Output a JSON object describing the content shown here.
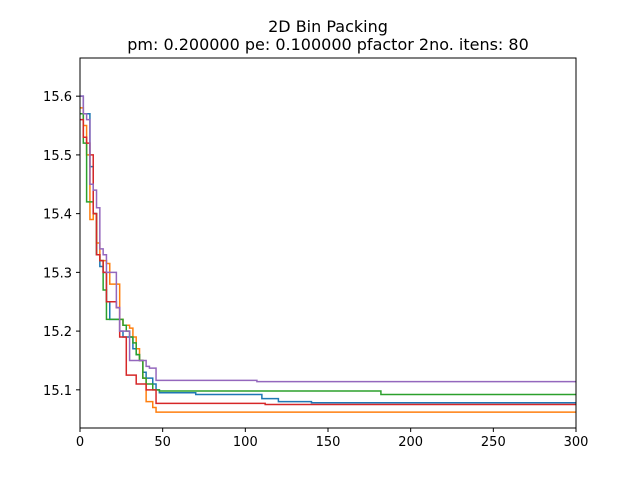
{
  "chart_data": {
    "type": "line",
    "title": "2D Bin Packing",
    "subtitle": "pm: 0.200000 pe: 0.100000 pfactor 2no. itens: 80",
    "xlabel": "",
    "ylabel": "",
    "xlim": [
      0,
      300
    ],
    "ylim": [
      15.035,
      15.665
    ],
    "xticks": [
      0,
      50,
      100,
      150,
      200,
      250,
      300
    ],
    "yticks": [
      15.1,
      15.2,
      15.3,
      15.4,
      15.5,
      15.6
    ],
    "grid": false,
    "legend": "none",
    "series": [
      {
        "color": "#1f77b4",
        "x": [
          0,
          2,
          4,
          6,
          8,
          10,
          12,
          14,
          16,
          18,
          20,
          22,
          24,
          26,
          28,
          30,
          32,
          34,
          36,
          38,
          40,
          42,
          44,
          46,
          48,
          50,
          70,
          110,
          120,
          140,
          300
        ],
        "y": [
          15.6,
          15.57,
          15.57,
          15.48,
          15.4,
          15.33,
          15.31,
          15.3,
          15.25,
          15.22,
          15.22,
          15.22,
          15.2,
          15.19,
          15.19,
          15.19,
          15.17,
          15.16,
          15.15,
          15.13,
          15.12,
          15.12,
          15.11,
          15.1,
          15.095,
          15.095,
          15.092,
          15.085,
          15.08,
          15.078,
          15.078
        ]
      },
      {
        "color": "#ff7f0e",
        "x": [
          0,
          2,
          4,
          6,
          8,
          10,
          12,
          14,
          16,
          18,
          20,
          22,
          24,
          26,
          28,
          30,
          32,
          34,
          36,
          38,
          40,
          42,
          44,
          46,
          48,
          300
        ],
        "y": [
          15.58,
          15.55,
          15.5,
          15.39,
          15.4,
          15.35,
          15.32,
          15.32,
          15.315,
          15.28,
          15.28,
          15.28,
          15.22,
          15.21,
          15.21,
          15.205,
          15.19,
          15.17,
          15.15,
          15.12,
          15.08,
          15.08,
          15.07,
          15.062,
          15.062,
          15.062
        ]
      },
      {
        "color": "#2ca02c",
        "x": [
          0,
          2,
          4,
          6,
          8,
          10,
          12,
          14,
          16,
          18,
          20,
          22,
          24,
          26,
          28,
          30,
          32,
          34,
          36,
          38,
          40,
          42,
          44,
          46,
          48,
          180,
          182,
          300
        ],
        "y": [
          15.57,
          15.52,
          15.42,
          15.42,
          15.4,
          15.33,
          15.32,
          15.27,
          15.22,
          15.22,
          15.22,
          15.22,
          15.22,
          15.21,
          15.2,
          15.19,
          15.18,
          15.16,
          15.15,
          15.12,
          15.11,
          15.11,
          15.1,
          15.1,
          15.098,
          15.098,
          15.092,
          15.092
        ]
      },
      {
        "color": "#d62728",
        "x": [
          0,
          2,
          4,
          6,
          8,
          10,
          12,
          14,
          16,
          18,
          20,
          22,
          24,
          26,
          28,
          30,
          32,
          34,
          36,
          38,
          40,
          42,
          44,
          46,
          48,
          110,
          112,
          300
        ],
        "y": [
          15.56,
          15.53,
          15.52,
          15.5,
          15.4,
          15.33,
          15.32,
          15.3,
          15.25,
          15.25,
          15.25,
          15.24,
          15.19,
          15.19,
          15.125,
          15.125,
          15.125,
          15.11,
          15.11,
          15.11,
          15.1,
          15.1,
          15.1,
          15.077,
          15.077,
          15.077,
          15.075,
          15.075
        ]
      },
      {
        "color": "#9467bd",
        "x": [
          0,
          2,
          4,
          6,
          8,
          10,
          12,
          14,
          16,
          18,
          20,
          22,
          24,
          26,
          28,
          30,
          32,
          34,
          36,
          38,
          40,
          42,
          44,
          46,
          48,
          105,
          107,
          300
        ],
        "y": [
          15.6,
          15.57,
          15.56,
          15.45,
          15.44,
          15.41,
          15.34,
          15.33,
          15.3,
          15.3,
          15.3,
          15.24,
          15.2,
          15.2,
          15.2,
          15.15,
          15.15,
          15.15,
          15.15,
          15.15,
          15.14,
          15.137,
          15.137,
          15.116,
          15.116,
          15.116,
          15.114,
          15.114
        ]
      }
    ]
  }
}
